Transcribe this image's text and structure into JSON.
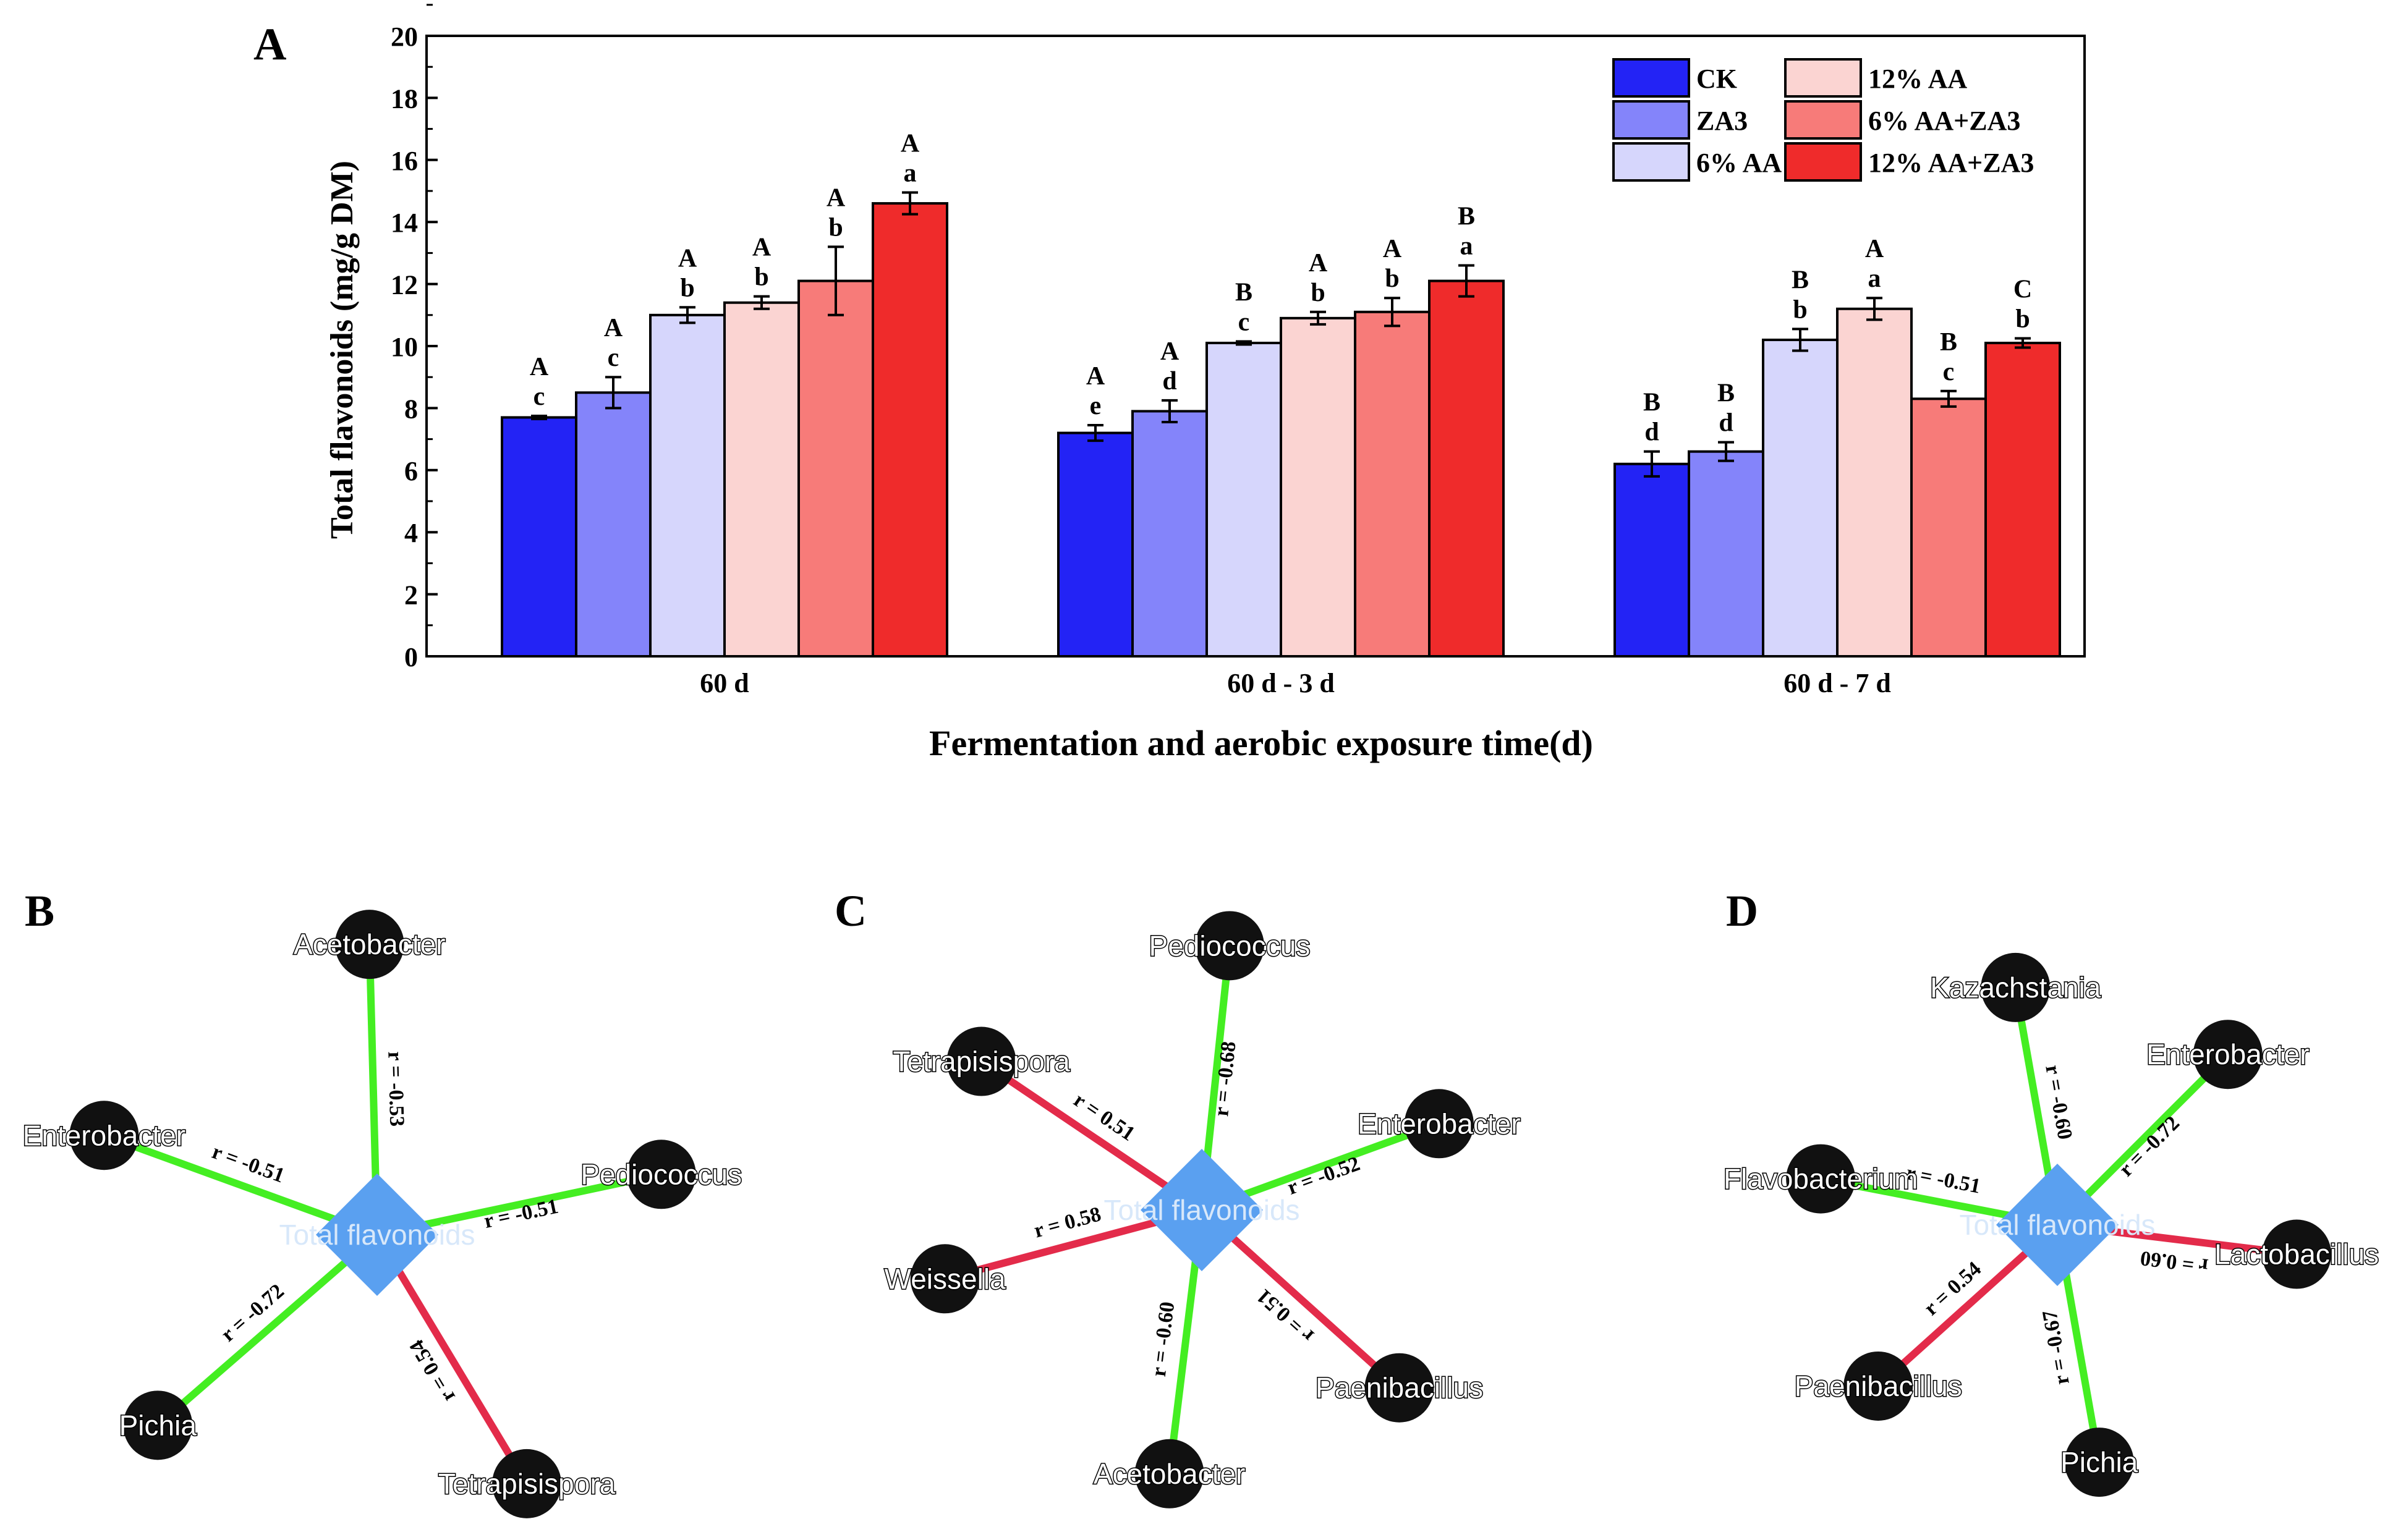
{
  "chart_data": [
    {
      "panel": "A",
      "type": "bar",
      "ylabel": "Total flavonoids (mg/g DM)",
      "xlabel": "Fermentation and aerobic exposure time(d)",
      "ylim": [
        0,
        20
      ],
      "yticks": [
        0,
        2,
        4,
        6,
        8,
        10,
        12,
        14,
        16,
        18,
        20
      ],
      "categories": [
        "60 d",
        "60 d - 3 d",
        "60 d - 7 d"
      ],
      "legend_position": "top-right",
      "series": [
        {
          "name": "CK",
          "color": "#2323f5",
          "values": [
            7.7,
            7.2,
            6.2
          ],
          "errors": [
            0.05,
            0.25,
            0.4
          ],
          "upper": [
            "A",
            "A",
            "B"
          ],
          "lower": [
            "c",
            "e",
            "d"
          ]
        },
        {
          "name": "ZA3",
          "color": "#8484fa",
          "values": [
            8.5,
            7.9,
            6.6
          ],
          "errors": [
            0.5,
            0.35,
            0.3
          ],
          "upper": [
            "A",
            "A",
            "B"
          ],
          "lower": [
            "c",
            "d",
            "d"
          ]
        },
        {
          "name": "6% AA",
          "color": "#d6d6fc",
          "values": [
            11.0,
            10.1,
            10.2
          ],
          "errors": [
            0.25,
            0.05,
            0.35
          ],
          "upper": [
            "A",
            "B",
            "B"
          ],
          "lower": [
            "b",
            "c",
            "b"
          ]
        },
        {
          "name": "12% AA",
          "color": "#fbd4d2",
          "values": [
            11.4,
            10.9,
            11.2
          ],
          "errors": [
            0.2,
            0.2,
            0.35
          ],
          "upper": [
            "A",
            "A",
            "A"
          ],
          "lower": [
            "b",
            "b",
            "a"
          ]
        },
        {
          "name": "6% AA+ZA3",
          "color": "#f77b79",
          "values": [
            12.1,
            11.1,
            8.3
          ],
          "errors": [
            1.1,
            0.45,
            0.25
          ],
          "upper": [
            "A",
            "A",
            "B"
          ],
          "lower": [
            "b",
            "b",
            "c"
          ]
        },
        {
          "name": "12% AA+ZA3",
          "color": "#ef2b2b",
          "values": [
            14.6,
            12.1,
            10.1
          ],
          "errors": [
            0.35,
            0.5,
            0.15
          ],
          "upper": [
            "A",
            "B",
            "C"
          ],
          "lower": [
            "a",
            "a",
            "b"
          ]
        }
      ]
    },
    {
      "panel": "B",
      "type": "network",
      "center": "Total flavonoids",
      "edges": [
        {
          "node": "Acetobacter",
          "r": "r = -0.53",
          "sign": "negative",
          "angle": 91.5,
          "length": 1.0
        },
        {
          "node": "Enterobacter",
          "r": "r = -0.51",
          "sign": "negative",
          "angle": 160,
          "length": 1.0
        },
        {
          "node": "Pediococcus",
          "r": "r = -0.51",
          "sign": "negative",
          "angle": 12,
          "length": 1.0
        },
        {
          "node": "Pichia",
          "r": "r = -0.72",
          "sign": "negative",
          "angle": 221,
          "length": 1.0
        },
        {
          "node": "Tetrapisispora",
          "r": "r = 0.54",
          "sign": "positive",
          "angle": 301,
          "length": 1.0
        }
      ]
    },
    {
      "panel": "C",
      "type": "network",
      "center": "Total flavonoids",
      "edges": [
        {
          "node": "Pediococcus",
          "r": "r = -0.68",
          "sign": "negative",
          "angle": 84,
          "length": 1.0
        },
        {
          "node": "Tetrapisispora",
          "r": "r = 0.51",
          "sign": "positive",
          "angle": 146,
          "length": 1.0
        },
        {
          "node": "Enterobacter",
          "r": "r = -0.52",
          "sign": "negative",
          "angle": 20,
          "length": 0.95
        },
        {
          "node": "Weissella",
          "r": "r = 0.58",
          "sign": "positive",
          "angle": 195,
          "length": 1.0
        },
        {
          "node": "Paenibacillus",
          "r": "r = 0.51",
          "sign": "positive",
          "angle": 318,
          "length": 1.0
        },
        {
          "node": "Acetobacter",
          "r": "r = -0.60",
          "sign": "negative",
          "angle": 263,
          "length": 1.0
        }
      ]
    },
    {
      "panel": "D",
      "type": "network",
      "center": "Total flavonoids",
      "edges": [
        {
          "node": "Kazachstania",
          "r": "r = -0.60",
          "sign": "negative",
          "angle": 100,
          "length": 1.0
        },
        {
          "node": "Enterobacter",
          "r": "r = -0.72",
          "sign": "negative",
          "angle": 45,
          "length": 1.0
        },
        {
          "node": "Flavobacterium",
          "r": "r = -0.51",
          "sign": "negative",
          "angle": 169,
          "length": 1.0
        },
        {
          "node": "Lactobacillus",
          "r": "r = 0.60",
          "sign": "positive",
          "angle": 353,
          "length": 1.0
        },
        {
          "node": "Paenibacillus",
          "r": "r = 0.54",
          "sign": "positive",
          "angle": 222,
          "length": 1.0
        },
        {
          "node": "Pichia",
          "r": "r = -0.67",
          "sign": "negative",
          "angle": 280,
          "length": 1.0
        }
      ]
    }
  ],
  "colors": {
    "negative_edge": "#44ee22",
    "positive_edge": "#e32b4a",
    "center_node": "#5aa0f0",
    "node": "#111111"
  }
}
